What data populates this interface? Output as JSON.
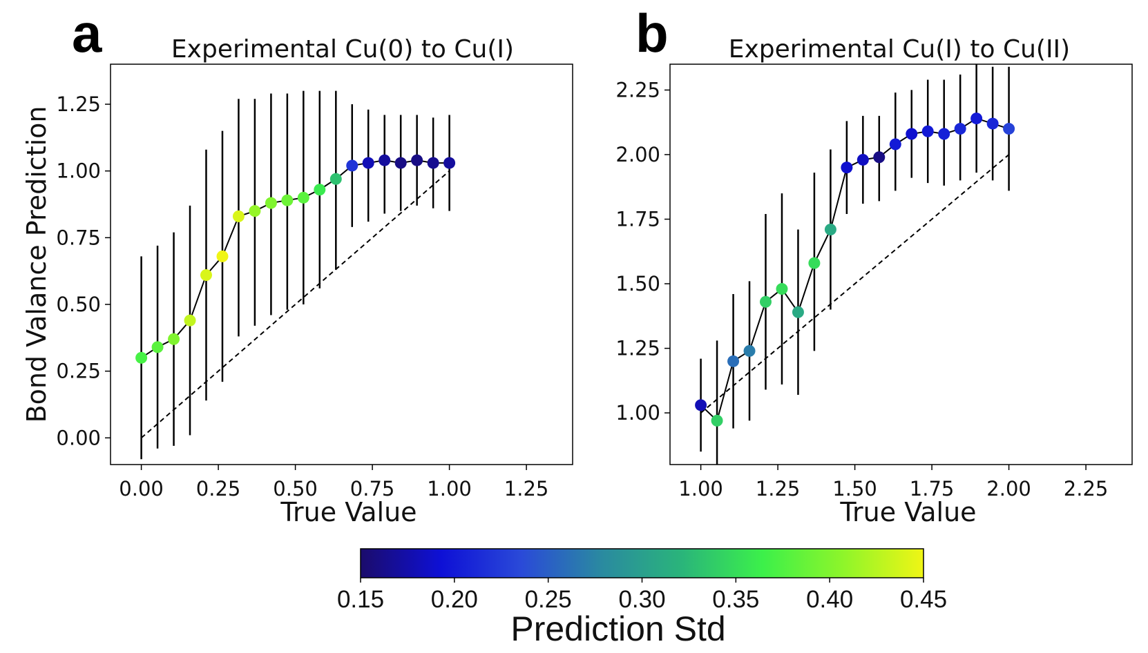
{
  "chart_data": [
    {
      "type": "scatter",
      "panel_label": "a",
      "title": "Experimental Cu(0) to Cu(I)",
      "xlabel": "True Value",
      "ylabel": "Bond Valance Prediction",
      "xlim": [
        -0.1,
        1.4
      ],
      "ylim": [
        -0.1,
        1.4
      ],
      "xticks": [
        0.0,
        0.25,
        0.5,
        0.75,
        1.0,
        1.25
      ],
      "yticks": [
        0.0,
        0.25,
        0.5,
        0.75,
        1.0,
        1.25
      ],
      "xtick_labels": [
        "0.00",
        "0.25",
        "0.50",
        "0.75",
        "1.00",
        "1.25"
      ],
      "ytick_labels": [
        "0.00",
        "0.25",
        "0.50",
        "0.75",
        "1.00",
        "1.25"
      ],
      "reference_line": {
        "style": "dashed",
        "x": [
          0.0,
          1.0
        ],
        "y": [
          0.0,
          1.0
        ]
      },
      "x": [
        0.0,
        0.0526,
        0.1053,
        0.1579,
        0.2105,
        0.2632,
        0.3158,
        0.3684,
        0.4211,
        0.4737,
        0.5263,
        0.5789,
        0.6316,
        0.6842,
        0.7368,
        0.7895,
        0.8421,
        0.8947,
        0.9474,
        1.0
      ],
      "y": [
        0.3,
        0.34,
        0.37,
        0.44,
        0.61,
        0.68,
        0.83,
        0.85,
        0.88,
        0.89,
        0.9,
        0.93,
        0.97,
        1.02,
        1.03,
        1.04,
        1.03,
        1.04,
        1.03,
        1.03
      ],
      "y_lower": [
        -0.08,
        -0.04,
        -0.03,
        0.01,
        0.14,
        0.21,
        0.38,
        0.42,
        0.46,
        0.48,
        0.5,
        0.56,
        0.63,
        0.79,
        0.81,
        0.84,
        0.85,
        0.87,
        0.86,
        0.85
      ],
      "y_upper": [
        0.68,
        0.72,
        0.77,
        0.87,
        1.08,
        1.15,
        1.27,
        1.27,
        1.29,
        1.29,
        1.3,
        1.3,
        1.3,
        1.25,
        1.23,
        1.21,
        1.21,
        1.21,
        1.2,
        1.21
      ],
      "std": [
        0.37,
        0.38,
        0.4,
        0.43,
        0.44,
        0.45,
        0.44,
        0.41,
        0.4,
        0.39,
        0.38,
        0.36,
        0.33,
        0.22,
        0.18,
        0.17,
        0.16,
        0.16,
        0.165,
        0.17
      ]
    },
    {
      "type": "scatter",
      "panel_label": "b",
      "title": "Experimental Cu(I) to Cu(II)",
      "xlabel": "True Value",
      "ylabel": "",
      "xlim": [
        0.9,
        2.4
      ],
      "ylim": [
        0.8,
        2.35
      ],
      "xticks": [
        1.0,
        1.25,
        1.5,
        1.75,
        2.0,
        2.25
      ],
      "yticks": [
        1.0,
        1.25,
        1.5,
        1.75,
        2.0,
        2.25
      ],
      "xtick_labels": [
        "1.00",
        "1.25",
        "1.50",
        "1.75",
        "2.00",
        "2.25"
      ],
      "ytick_labels": [
        "1.00",
        "1.25",
        "1.50",
        "1.75",
        "2.00",
        "2.25"
      ],
      "reference_line": {
        "style": "dashed",
        "x": [
          1.0,
          2.0
        ],
        "y": [
          1.0,
          2.0
        ]
      },
      "x": [
        1.0,
        1.0526,
        1.1053,
        1.1579,
        1.2105,
        1.2632,
        1.3158,
        1.3684,
        1.4211,
        1.4737,
        1.5263,
        1.5789,
        1.6316,
        1.6842,
        1.7368,
        1.7895,
        1.8421,
        1.8947,
        1.9474,
        2.0
      ],
      "y": [
        1.03,
        0.97,
        1.2,
        1.24,
        1.43,
        1.48,
        1.39,
        1.58,
        1.71,
        1.95,
        1.98,
        1.99,
        2.04,
        2.08,
        2.09,
        2.08,
        2.1,
        2.14,
        2.12,
        2.1
      ],
      "y_lower": [
        0.85,
        0.8,
        0.94,
        0.97,
        1.09,
        1.11,
        1.07,
        1.24,
        1.4,
        1.77,
        1.81,
        1.82,
        1.86,
        1.91,
        1.89,
        1.88,
        1.9,
        1.93,
        1.9,
        1.86
      ],
      "y_upper": [
        1.21,
        1.28,
        1.46,
        1.51,
        1.77,
        1.85,
        1.71,
        1.93,
        2.02,
        2.13,
        2.15,
        2.15,
        2.24,
        2.25,
        2.29,
        2.29,
        2.31,
        2.35,
        2.34,
        2.34
      ],
      "std": [
        0.18,
        0.34,
        0.26,
        0.27,
        0.34,
        0.35,
        0.31,
        0.35,
        0.31,
        0.19,
        0.185,
        0.16,
        0.2,
        0.19,
        0.2,
        0.205,
        0.21,
        0.2,
        0.21,
        0.23
      ]
    }
  ],
  "colorbar": {
    "label": "Prediction Std",
    "range": [
      0.15,
      0.45
    ],
    "ticks": [
      0.15,
      0.2,
      0.25,
      0.3,
      0.35,
      0.4,
      0.45
    ],
    "tick_labels": [
      "0.15",
      "0.20",
      "0.25",
      "0.30",
      "0.35",
      "0.40",
      "0.45"
    ],
    "colormap_stops": [
      "#1b0c6b",
      "#0e10d6",
      "#2a4ad8",
      "#2a8aa0",
      "#2ab57a",
      "#3cf04a",
      "#8ef52a",
      "#f0f515"
    ]
  }
}
